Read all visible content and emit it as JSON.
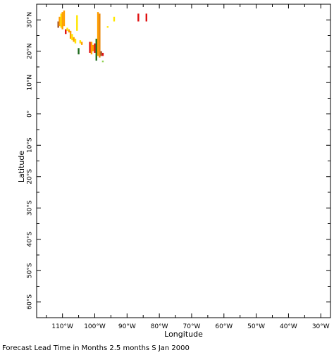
{
  "chart_data": {
    "type": "scatter",
    "xlabel": "Longitude",
    "ylabel": "Latitude",
    "xlim": [
      -118,
      -27
    ],
    "ylim": [
      -65,
      35
    ],
    "x_ticks": [
      {
        "value": -110,
        "label": "110°W"
      },
      {
        "value": -100,
        "label": "100°W"
      },
      {
        "value": -90,
        "label": "90°W"
      },
      {
        "value": -80,
        "label": "80°W"
      },
      {
        "value": -70,
        "label": "70°W"
      },
      {
        "value": -60,
        "label": "60°W"
      },
      {
        "value": -50,
        "label": "50°W"
      },
      {
        "value": -40,
        "label": "40°W"
      },
      {
        "value": -30,
        "label": "30°W"
      }
    ],
    "y_ticks": [
      {
        "value": 30,
        "label": "30°N"
      },
      {
        "value": 20,
        "label": "20°N"
      },
      {
        "value": 10,
        "label": "10°N"
      },
      {
        "value": 0,
        "label": "0°"
      },
      {
        "value": -10,
        "label": "10°S"
      },
      {
        "value": -20,
        "label": "20°S"
      },
      {
        "value": -30,
        "label": "30°S"
      },
      {
        "value": -40,
        "label": "40°S"
      },
      {
        "value": -50,
        "label": "50°S"
      },
      {
        "value": -60,
        "label": "60°S"
      }
    ],
    "colors": {
      "yellow": "#ffe600",
      "orange": "#ff9f00",
      "dark_orange": "#e8850a",
      "red": "#e01010",
      "brown": "#a0522d",
      "dark_green": "#1e6b1e",
      "light_green": "#8fd14f"
    },
    "segments": [
      {
        "lon": -111.3,
        "lat_from": 27.5,
        "lat_to": 29.5,
        "color": "brown"
      },
      {
        "lon": -110.9,
        "lat_from": 28.0,
        "lat_to": 31.0,
        "color": "orange"
      },
      {
        "lon": -110.4,
        "lat_from": 27.5,
        "lat_to": 32.0,
        "color": "yellow"
      },
      {
        "lon": -110.0,
        "lat_from": 27.0,
        "lat_to": 32.5,
        "color": "orange"
      },
      {
        "lon": -109.5,
        "lat_from": 28.0,
        "lat_to": 33.0,
        "color": "orange"
      },
      {
        "lon": -109.0,
        "lat_from": 25.5,
        "lat_to": 27.0,
        "color": "red"
      },
      {
        "lon": -108.5,
        "lat_from": 26.5,
        "lat_to": 27.5,
        "color": "yellow"
      },
      {
        "lon": -108.0,
        "lat_from": 26.0,
        "lat_to": 27.0,
        "color": "orange"
      },
      {
        "lon": -107.5,
        "lat_from": 24.0,
        "lat_to": 26.5,
        "color": "orange"
      },
      {
        "lon": -107.0,
        "lat_from": 23.5,
        "lat_to": 25.5,
        "color": "yellow"
      },
      {
        "lon": -106.5,
        "lat_from": 23.0,
        "lat_to": 24.5,
        "color": "orange"
      },
      {
        "lon": -106.0,
        "lat_from": 22.5,
        "lat_to": 24.0,
        "color": "yellow"
      },
      {
        "lon": -105.5,
        "lat_from": 26.5,
        "lat_to": 31.5,
        "color": "yellow"
      },
      {
        "lon": -105.0,
        "lat_from": 19.0,
        "lat_to": 21.0,
        "color": "dark_green"
      },
      {
        "lon": -104.5,
        "lat_from": 22.5,
        "lat_to": 23.5,
        "color": "yellow"
      },
      {
        "lon": -104.0,
        "lat_from": 22.0,
        "lat_to": 23.0,
        "color": "orange"
      },
      {
        "lon": -101.5,
        "lat_from": 19.5,
        "lat_to": 23.0,
        "color": "red"
      },
      {
        "lon": -101.0,
        "lat_from": 19.0,
        "lat_to": 23.0,
        "color": "orange"
      },
      {
        "lon": -100.5,
        "lat_from": 20.0,
        "lat_to": 22.0,
        "color": "orange"
      },
      {
        "lon": -100.0,
        "lat_from": 19.5,
        "lat_to": 22.5,
        "color": "red"
      },
      {
        "lon": -99.5,
        "lat_from": 17.0,
        "lat_to": 24.0,
        "color": "dark_green"
      },
      {
        "lon": -99.0,
        "lat_from": 18.5,
        "lat_to": 32.5,
        "color": "orange"
      },
      {
        "lon": -98.5,
        "lat_from": 18.0,
        "lat_to": 32.0,
        "color": "dark_orange"
      },
      {
        "lon": -98.0,
        "lat_from": 18.5,
        "lat_to": 20.0,
        "color": "brown"
      },
      {
        "lon": -97.5,
        "lat_from": 16.5,
        "lat_to": 17.0,
        "color": "light_green"
      },
      {
        "lon": -97.5,
        "lat_from": 18.5,
        "lat_to": 19.5,
        "color": "red"
      },
      {
        "lon": -96.0,
        "lat_from": 27.5,
        "lat_to": 28.0,
        "color": "yellow"
      },
      {
        "lon": -94.0,
        "lat_from": 29.5,
        "lat_to": 31.0,
        "color": "yellow"
      },
      {
        "lon": -86.5,
        "lat_from": 29.5,
        "lat_to": 32.0,
        "color": "red"
      },
      {
        "lon": -84.0,
        "lat_from": 29.5,
        "lat_to": 32.0,
        "color": "red"
      }
    ]
  },
  "footer": {
    "caption": "Forecast Lead Time in Months 2.5 months S Jan 2000"
  }
}
